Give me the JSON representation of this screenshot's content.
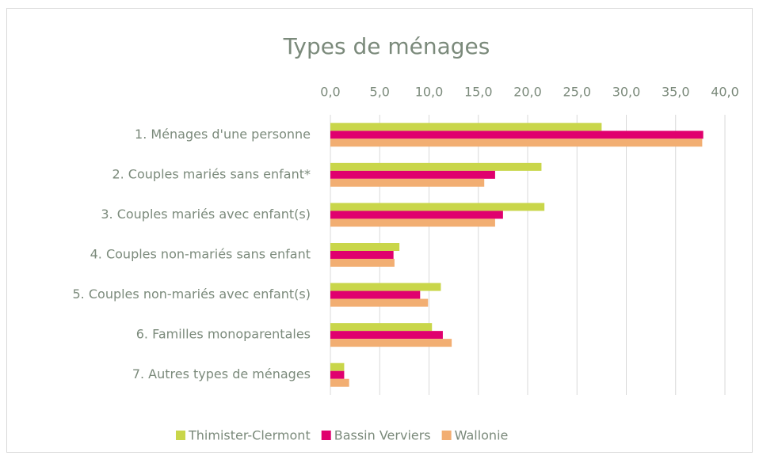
{
  "chart_data": {
    "type": "bar",
    "orientation": "horizontal",
    "title": "Types de ménages",
    "categories": [
      "1. Ménages d'une personne",
      "2. Couples mariés sans enfant*",
      "3. Couples mariés avec enfant(s)",
      "4. Couples non-mariés sans enfant",
      "5. Couples non-mariés avec enfant(s)",
      "6. Familles monoparentales",
      "7. Autres types de ménages"
    ],
    "series": [
      {
        "name": "Thimister-Clermont",
        "color": "#c9d64a",
        "values": [
          27.5,
          21.4,
          21.7,
          7.0,
          11.2,
          10.3,
          1.4
        ]
      },
      {
        "name": "Bassin Verviers",
        "color": "#e0006e",
        "values": [
          37.8,
          16.7,
          17.5,
          6.4,
          9.1,
          11.4,
          1.4
        ]
      },
      {
        "name": "Wallonie",
        "color": "#f2ae72",
        "values": [
          37.7,
          15.6,
          16.7,
          6.5,
          9.9,
          12.3,
          1.9
        ]
      }
    ],
    "xlim": [
      0,
      40
    ],
    "xticks": [
      {
        "value": 0,
        "label": "0,0"
      },
      {
        "value": 5,
        "label": "5,0"
      },
      {
        "value": 10,
        "label": "10,0"
      },
      {
        "value": 15,
        "label": "15,0"
      },
      {
        "value": 20,
        "label": "20,0"
      },
      {
        "value": 25,
        "label": "25,0"
      },
      {
        "value": 30,
        "label": "30,0"
      },
      {
        "value": 35,
        "label": "35,0"
      },
      {
        "value": 40,
        "label": "40,0"
      }
    ],
    "grid": true,
    "legend": "bottom"
  }
}
